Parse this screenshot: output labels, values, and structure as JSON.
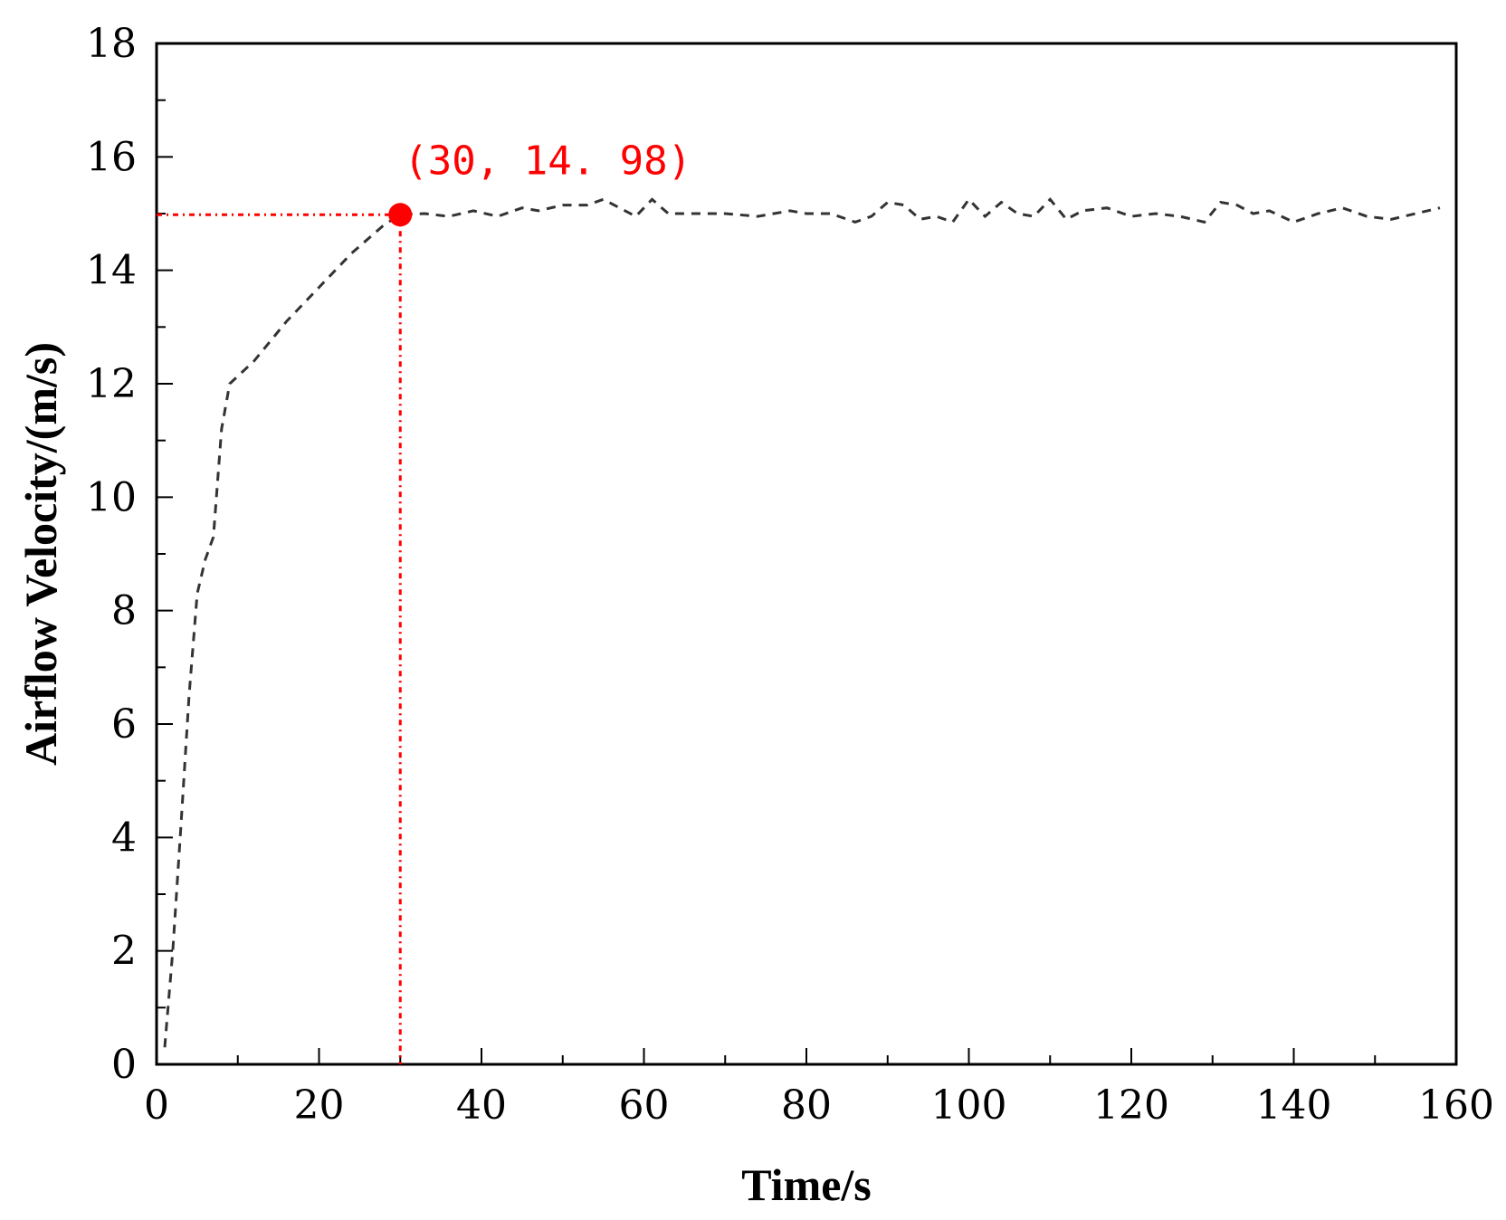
{
  "chart_data": {
    "type": "line",
    "xlabel": "Time/s",
    "ylabel": "Airflow Velocity/(m/s)",
    "xlim": [
      0,
      160
    ],
    "ylim": [
      0,
      18
    ],
    "x_ticks": [
      "0",
      "20",
      "40",
      "60",
      "80",
      "100",
      "120",
      "140",
      "160"
    ],
    "y_ticks": [
      "0",
      "2",
      "4",
      "6",
      "8",
      "10",
      "12",
      "14",
      "16",
      "18"
    ],
    "grid": false,
    "line_style": "dashed",
    "line_color": "#333333",
    "series": [
      {
        "x": [
          1,
          2,
          3,
          4,
          5,
          6,
          7,
          8,
          9,
          12,
          16,
          20,
          24,
          28,
          30,
          33,
          36,
          39,
          42,
          45,
          47,
          50,
          53,
          55,
          57,
          59,
          61,
          63,
          66,
          70,
          74,
          78,
          80,
          83,
          86,
          88,
          90,
          92,
          94,
          96,
          98,
          100,
          102,
          104,
          106,
          108,
          110,
          112,
          114,
          117,
          120,
          123,
          126,
          129,
          131,
          133,
          135,
          137,
          140,
          143,
          146,
          149,
          152,
          155,
          158
        ],
        "y": [
          0.3,
          2.0,
          4.2,
          6.5,
          8.3,
          8.9,
          9.3,
          11.2,
          12.0,
          12.4,
          13.1,
          13.7,
          14.3,
          14.8,
          14.98,
          15.0,
          14.95,
          15.05,
          14.95,
          15.1,
          15.05,
          15.15,
          15.15,
          15.25,
          15.1,
          14.95,
          15.25,
          15.0,
          15.0,
          15.0,
          14.95,
          15.05,
          15.0,
          15.0,
          14.85,
          14.95,
          15.2,
          15.15,
          14.9,
          14.95,
          14.85,
          15.25,
          14.95,
          15.2,
          15.0,
          14.95,
          15.25,
          14.9,
          15.05,
          15.1,
          14.95,
          15.0,
          14.95,
          14.85,
          15.2,
          15.15,
          15.0,
          15.05,
          14.85,
          15.0,
          15.1,
          14.95,
          14.9,
          15.0,
          15.1
        ]
      }
    ],
    "highlight": {
      "x": 30,
      "y": 14.98,
      "label": "(30, 14. 98)",
      "color": "#ff0000"
    }
  }
}
